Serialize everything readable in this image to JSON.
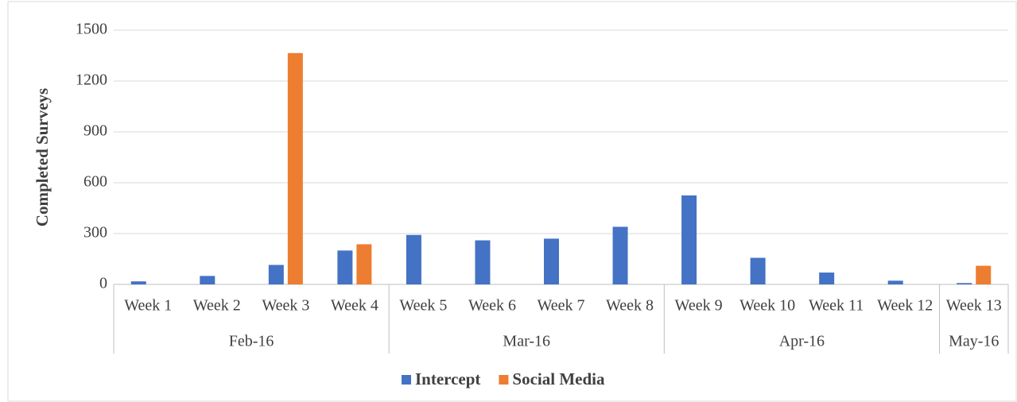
{
  "chart_data": {
    "type": "bar",
    "y_label": "Completed Surveys",
    "categories": [
      "Week 1",
      "Week 2",
      "Week 3",
      "Week 4",
      "Week 5",
      "Week 6",
      "Week 7",
      "Week 8",
      "Week 9",
      "Week 10",
      "Week 11",
      "Week 12",
      "Week 13"
    ],
    "category_groups": [
      "Feb-16",
      "Feb-16",
      "Feb-16",
      "Feb-16",
      "Mar-16",
      "Mar-16",
      "Mar-16",
      "Mar-16",
      "Apr-16",
      "Apr-16",
      "Apr-16",
      "Apr-16",
      "May-16"
    ],
    "series": [
      {
        "name": "Intercept",
        "color": "#4472c4",
        "values": [
          18,
          50,
          115,
          200,
          292,
          260,
          270,
          340,
          525,
          157,
          70,
          22,
          8
        ]
      },
      {
        "name": "Social Media",
        "color": "#ed7d31",
        "values": [
          null,
          null,
          1365,
          237,
          null,
          null,
          null,
          null,
          null,
          null,
          null,
          null,
          110
        ]
      }
    ],
    "ylim": [
      0,
      1500
    ],
    "yticks": [
      0,
      300,
      600,
      900,
      1200,
      1500
    ],
    "grid": true,
    "legend": "bottom"
  }
}
